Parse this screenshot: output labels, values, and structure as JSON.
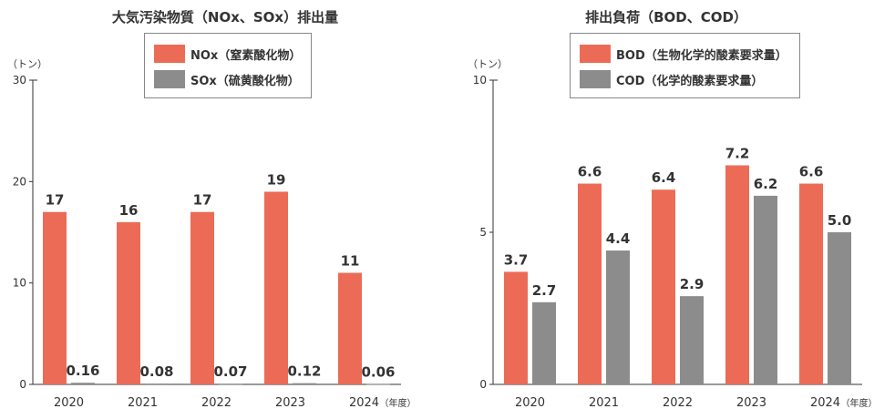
{
  "chart_data": [
    {
      "type": "bar",
      "title": "大気汚染物質（NOx、SOx）排出量",
      "ylabel": "（トン）",
      "xlabel_suffix": "（年度）",
      "categories": [
        "2020",
        "2021",
        "2022",
        "2023",
        "2024"
      ],
      "ylim": [
        0,
        30
      ],
      "yticks": [
        "0",
        "10",
        "20",
        "30"
      ],
      "legend_placement": "top-center",
      "series": [
        {
          "name": "NOx（窒素酸化物）",
          "color": "#ec6b56",
          "values": [
            17,
            16,
            17,
            19,
            11
          ],
          "labels": [
            "17",
            "16",
            "17",
            "19",
            "11"
          ]
        },
        {
          "name": "SOx（硫黄酸化物）",
          "color": "#8c8c8c",
          "values": [
            0.16,
            0.08,
            0.07,
            0.12,
            0.06
          ],
          "labels": [
            "0.16",
            "0.08",
            "0.07",
            "0.12",
            "0.06"
          ]
        }
      ]
    },
    {
      "type": "bar",
      "title": "排出負荷（BOD、COD）",
      "ylabel": "（トン）",
      "xlabel_suffix": "（年度）",
      "categories": [
        "2020",
        "2021",
        "2022",
        "2023",
        "2024"
      ],
      "ylim": [
        0,
        10
      ],
      "yticks": [
        "0",
        "5",
        "10"
      ],
      "legend_placement": "top-center",
      "series": [
        {
          "name": "BOD（生物化学的酸素要求量）",
          "color": "#ec6b56",
          "values": [
            3.7,
            6.6,
            6.4,
            7.2,
            6.6
          ],
          "labels": [
            "3.7",
            "6.6",
            "6.4",
            "7.2",
            "6.6"
          ]
        },
        {
          "name": "COD（化学的酸素要求量）",
          "color": "#8c8c8c",
          "values": [
            2.7,
            4.4,
            2.9,
            6.2,
            5.0
          ],
          "labels": [
            "2.7",
            "4.4",
            "2.9",
            "6.2",
            "5.0"
          ]
        }
      ]
    }
  ]
}
